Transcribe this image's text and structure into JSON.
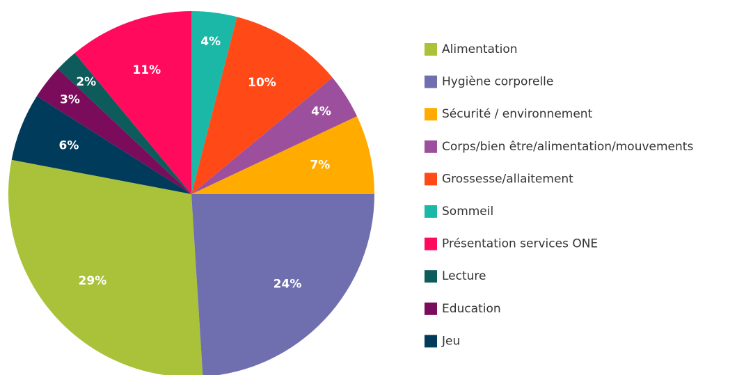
{
  "chart_data": {
    "type": "pie",
    "categories": [
      "Alimentation",
      "Hygiène corporelle",
      "Sécurité / environnement",
      "Corps/bien être/alimentation/mouvements",
      "Grossesse/allaitement",
      "Sommeil",
      "Présentation services  ONE",
      "Lecture",
      "Education",
      "Jeu"
    ],
    "values": [
      29,
      24,
      7,
      4,
      10,
      4,
      11,
      2,
      3,
      6
    ],
    "value_labels": [
      "29%",
      "24%",
      "7%",
      "4%",
      "10%",
      "4%",
      "11%",
      "2%",
      "3%",
      "6%"
    ],
    "colors": [
      "#a9c23a",
      "#6f6eae",
      "#ffab00",
      "#9b4f9c",
      "#ff4a17",
      "#1bb8a8",
      "#ff0a5c",
      "#0e5b5b",
      "#7b0b5b",
      "#003b5c"
    ],
    "legend": "right"
  }
}
